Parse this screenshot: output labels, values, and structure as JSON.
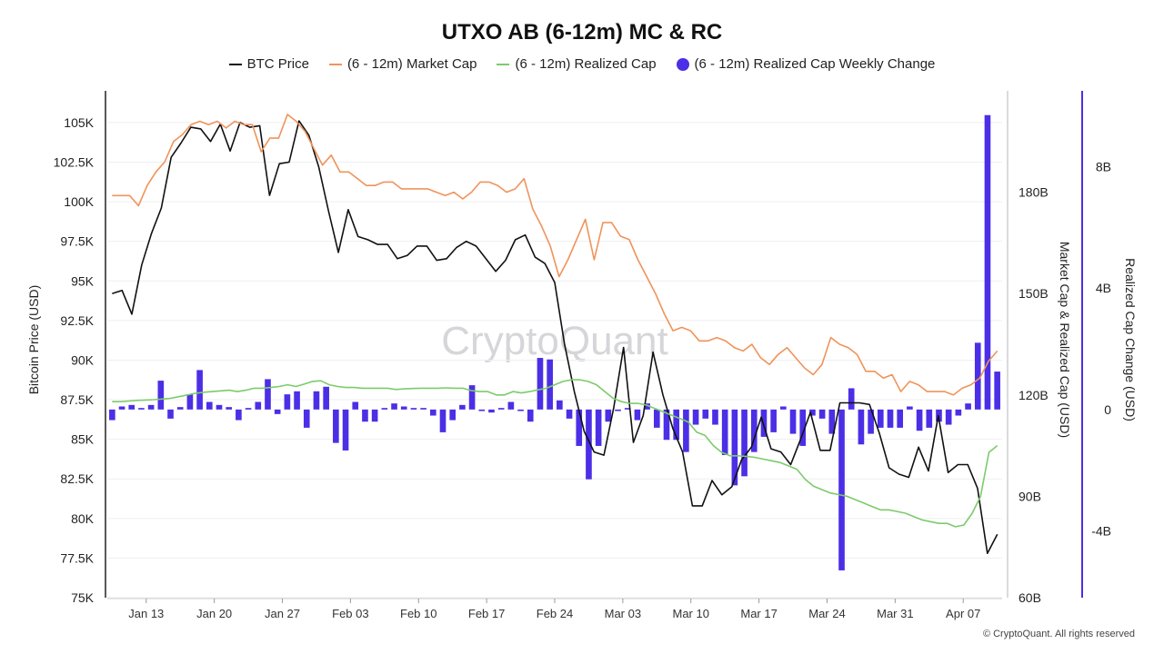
{
  "title": "UTXO AB (6-12m) MC & RC",
  "watermark": "CryptoQuant",
  "copyright": "© CryptoQuant. All rights reserved",
  "legend": [
    {
      "label": "BTC Price",
      "color": "#111111",
      "kind": "line"
    },
    {
      "label": "(6 - 12m) Market Cap",
      "color": "#f0935a",
      "kind": "line"
    },
    {
      "label": "(6 - 12m) Realized Cap",
      "color": "#7ccb6a",
      "kind": "line"
    },
    {
      "label": "(6 - 12m) Realized Cap Weekly Change",
      "color": "#4b2fe6",
      "kind": "dot"
    }
  ],
  "chart_data": {
    "type": "line",
    "title": "UTXO AB (6-12m) MC & RC",
    "x_start": "2025-01-09",
    "x_ticks": [
      "Jan 13",
      "Jan 20",
      "Jan 27",
      "Feb 03",
      "Feb 10",
      "Feb 17",
      "Feb 24",
      "Mar 03",
      "Mar 10",
      "Mar 17",
      "Mar 24",
      "Mar 31",
      "Apr 07"
    ],
    "axes": {
      "left": {
        "label": "Bitcoin Price (USD)",
        "min": 75000,
        "max": 107000,
        "ticks": [
          "75K",
          "77.5K",
          "80K",
          "82.5K",
          "85K",
          "87.5K",
          "90K",
          "92.5K",
          "95K",
          "97.5K",
          "100K",
          "102.5K",
          "105K"
        ]
      },
      "right1": {
        "label": "Market Cap & Realized Cap (USD)",
        "min": 60,
        "max": 210,
        "ticks": [
          "60B",
          "90B",
          "120B",
          "150B",
          "180B"
        ]
      },
      "right2": {
        "label": "Realized Cap Change (USD)",
        "min": -6.2,
        "max": 10.5,
        "ticks": [
          "-4B",
          "0",
          "4B",
          "8B"
        ]
      }
    },
    "series": [
      {
        "name": "BTC Price",
        "axis": "left",
        "type": "line",
        "values": [
          94200,
          94400,
          92900,
          96000,
          98000,
          99600,
          102800,
          103700,
          104700,
          104600,
          103800,
          104900,
          103200,
          105000,
          104700,
          104800,
          100400,
          102400,
          102500,
          105100,
          104200,
          102200,
          99400,
          96800,
          99500,
          97800,
          97600,
          97300,
          97300,
          96400,
          96600,
          97200,
          97200,
          96300,
          96400,
          97100,
          97500,
          97200,
          96400,
          95600,
          96300,
          97600,
          97900,
          96500,
          96100,
          94900,
          91000,
          88000,
          85500,
          84200,
          84000,
          87000,
          90800,
          84800,
          86500,
          90500,
          87800,
          85700,
          84200,
          80800,
          80800,
          82400,
          81500,
          82000,
          83700,
          84500,
          86400,
          84400,
          84200,
          83400,
          85000,
          86700,
          84300,
          84300,
          87300,
          87300,
          87300,
          87200,
          85400,
          83200,
          82800,
          82600,
          84500,
          83000,
          86500,
          82900,
          83400,
          83400,
          81900,
          77800,
          79000
        ]
      },
      {
        "name": "(6 - 12m) Market Cap",
        "axis": "right1",
        "type": "line",
        "values": [
          179,
          179,
          179,
          176,
          182,
          186,
          189,
          195,
          197,
          200,
          201,
          200,
          201,
          199,
          201,
          200,
          200,
          192,
          196,
          196,
          203,
          201,
          198,
          193,
          188,
          191,
          186,
          186,
          184,
          182,
          182,
          183,
          183,
          181,
          181,
          181,
          181,
          180,
          179,
          180,
          178,
          180,
          183,
          183,
          182,
          180,
          181,
          184,
          175,
          170,
          164,
          155,
          160,
          166,
          172,
          160,
          171,
          171,
          167,
          166,
          160,
          155,
          150,
          144,
          139,
          140,
          139,
          136,
          136,
          137,
          136,
          134,
          133,
          135,
          131,
          129,
          132,
          134,
          131,
          128,
          126,
          129,
          137,
          135,
          134,
          132,
          127,
          127,
          125,
          126,
          121,
          124,
          123,
          121,
          121,
          121,
          120,
          122,
          123,
          125,
          130,
          133
        ]
      },
      {
        "name": "(6 - 12m) Realized Cap",
        "axis": "right1",
        "type": "line",
        "values": [
          118,
          118,
          118.2,
          118.4,
          118.5,
          118.6,
          118.8,
          119,
          119.5,
          120,
          120.5,
          120.8,
          121,
          121.2,
          121.4,
          121,
          121.4,
          122,
          122,
          122.2,
          122.5,
          123,
          122.5,
          123.2,
          124,
          124.2,
          123,
          122.5,
          122.2,
          122.2,
          122,
          122,
          122,
          122,
          121.6,
          121.8,
          121.9,
          122,
          122,
          122,
          122.1,
          122,
          122,
          121.3,
          121,
          121,
          120,
          120,
          121,
          120.6,
          121,
          121.5,
          122,
          123,
          124,
          124.5,
          124.5,
          124,
          123,
          121,
          119,
          118,
          117.5,
          117.5,
          117,
          116,
          115,
          114,
          113,
          112,
          109,
          108,
          105,
          103,
          102,
          102,
          101.8,
          101.5,
          101,
          100.5,
          100,
          99,
          98,
          95,
          93,
          92,
          91,
          90.5,
          90,
          89,
          88,
          87,
          86,
          86,
          85.5,
          85,
          84,
          83,
          82.5,
          82,
          82,
          81,
          81.5,
          85,
          90,
          103,
          105
        ]
      },
      {
        "name": "(6 - 12m) Realized Cap Weekly Change",
        "axis": "right2",
        "type": "bar",
        "values": [
          -0.35,
          0.1,
          0.15,
          0.05,
          0.15,
          0.95,
          -0.3,
          0.08,
          0.5,
          1.3,
          0.25,
          0.15,
          0.08,
          -0.35,
          0.05,
          0.25,
          1.0,
          -0.15,
          0.5,
          0.6,
          -0.6,
          0.6,
          0.75,
          -1.1,
          -1.35,
          0.25,
          -0.4,
          -0.4,
          0.05,
          0.2,
          0.1,
          0.05,
          0.05,
          -0.2,
          -0.75,
          -0.35,
          0.15,
          0.8,
          -0.05,
          -0.1,
          0.05,
          0.25,
          -0.05,
          -0.4,
          1.7,
          1.65,
          0.3,
          -0.3,
          -1.2,
          -2.3,
          -1.2,
          -0.4,
          -0.05,
          0.05,
          -0.35,
          0.2,
          -0.6,
          -1.0,
          -1.0,
          -1.4,
          -0.5,
          -0.3,
          -0.5,
          -1.5,
          -2.5,
          -2.2,
          -1.4,
          -0.9,
          -0.75,
          0.1,
          -0.8,
          -1.2,
          -0.2,
          -0.3,
          -0.8,
          -5.3,
          0.7,
          -1.15,
          -0.8,
          -0.6,
          -0.6,
          -0.6,
          0.1,
          -0.7,
          -0.6,
          -0.4,
          -0.5,
          -0.2,
          0.2,
          2.2,
          9.7,
          1.25
        ]
      }
    ]
  }
}
